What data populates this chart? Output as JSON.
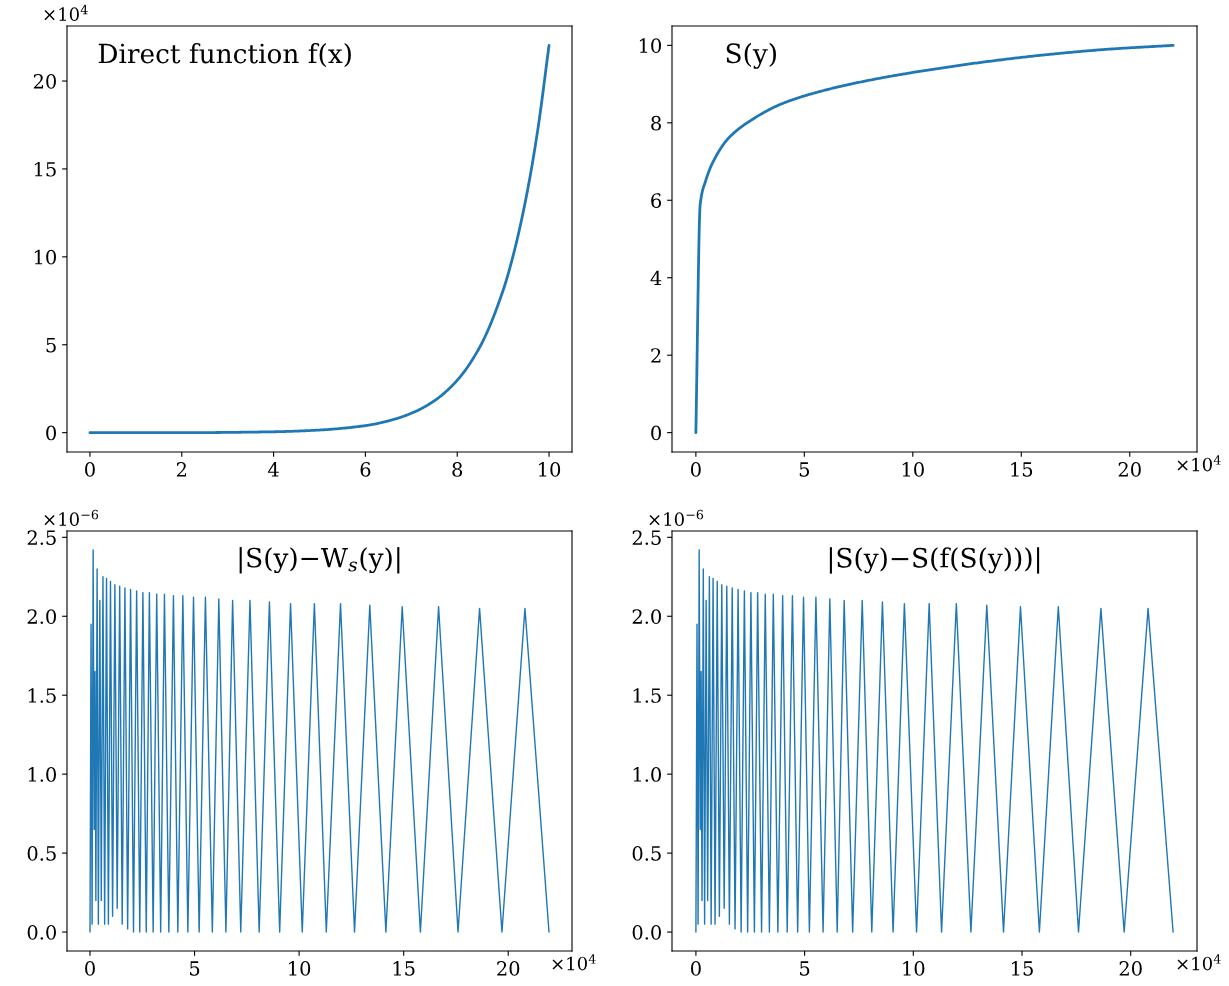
{
  "chart_data": [
    {
      "type": "line",
      "title": "Direct function f(x)",
      "x": [
        0,
        2,
        4,
        5,
        6,
        6.5,
        7,
        7.5,
        8,
        8.5,
        9,
        9.25,
        9.5,
        9.75,
        10
      ],
      "series": [
        {
          "color": "#1f77b4",
          "values": [
            0,
            0,
            0.05,
            0.15,
            0.4,
            0.67,
            1.1,
            1.81,
            2.98,
            4.91,
            8.1,
            10.4,
            13.36,
            17.15,
            22.03
          ]
        }
      ],
      "xlim": [
        -0.5,
        10.5
      ],
      "ylim": [
        -1.1,
        23.13
      ],
      "xticks": [
        0,
        2,
        4,
        6,
        8,
        10
      ],
      "yticks": [
        0,
        5,
        10,
        15,
        20
      ],
      "annotations": [
        "×10$^{4}$"
      ]
    },
    {
      "type": "line",
      "title": "S(y)",
      "x": [
        0,
        0.2,
        0.45,
        0.8,
        1.5,
        2.5,
        4,
        6,
        8,
        10,
        13,
        16,
        19,
        22
      ],
      "series": [
        {
          "color": "#1f77b4",
          "values": [
            0,
            5.9,
            6.5,
            7.0,
            7.6,
            8.05,
            8.5,
            8.85,
            9.1,
            9.3,
            9.55,
            9.75,
            9.9,
            10.0
          ]
        }
      ],
      "xlim": [
        -1.1,
        23.1
      ],
      "ylim": [
        -0.5,
        10.5
      ],
      "xticks": [
        0,
        5,
        10,
        15,
        20
      ],
      "yticks": [
        0,
        2,
        4,
        6,
        8,
        10
      ],
      "annotations": [
        "×10$^{4}$"
      ]
    },
    {
      "type": "line",
      "title": "|S(y)−W$_{s}$(y)|",
      "x": [
        0,
        0.05,
        0.1,
        0.15,
        0.2,
        0.24,
        0.28,
        0.34,
        0.4,
        0.47,
        0.54,
        0.62,
        0.7,
        0.79,
        0.88,
        0.98,
        1.08,
        1.19,
        1.3,
        1.42,
        1.54,
        1.67,
        1.8,
        1.94,
        2.08,
        2.23,
        2.38,
        2.53,
        2.69,
        2.84,
        3.02,
        3.19,
        3.38,
        3.56,
        3.77,
        3.99,
        4.2,
        4.44,
        4.68,
        4.95,
        5.22,
        5.52,
        5.85,
        6.16,
        6.5,
        6.82,
        7.21,
        7.65,
        8.09,
        8.58,
        9.07,
        9.59,
        10.15,
        10.73,
        11.3,
        11.98,
        12.65,
        13.38,
        14.15,
        14.93,
        15.8,
        16.67,
        17.6,
        18.63,
        19.7,
        20.8,
        21.95
      ],
      "series": [
        {
          "color": "#1f77b4",
          "values": [
            0,
            1.95,
            0.05,
            2.42,
            0.65,
            1.65,
            0.2,
            2.3,
            0.05,
            2.1,
            0.2,
            2.25,
            0.05,
            2.24,
            0.05,
            2.22,
            0.1,
            2.2,
            0.15,
            2.19,
            0.05,
            2.18,
            0.02,
            2.17,
            0,
            2.16,
            0,
            2.15,
            0,
            2.15,
            0,
            2.14,
            0,
            2.14,
            0,
            2.13,
            0,
            2.13,
            0,
            2.12,
            0,
            2.12,
            0,
            2.11,
            0,
            2.1,
            0,
            2.1,
            0,
            2.09,
            0,
            2.08,
            0,
            2.08,
            0,
            2.08,
            0,
            2.07,
            0,
            2.06,
            0,
            2.06,
            0,
            2.05,
            0,
            2.05,
            0
          ]
        }
      ],
      "xlim": [
        -1.1,
        23.05
      ],
      "ylim": [
        -0.12,
        2.54
      ],
      "xticks": [
        0,
        5,
        10,
        15,
        20
      ],
      "yticks": [
        {
          "value": 0,
          "label": "0.0"
        },
        {
          "value": 0.5,
          "label": "0.5"
        },
        {
          "value": 1,
          "label": "1.0"
        },
        {
          "value": 1.5,
          "label": "1.5"
        },
        {
          "value": 2,
          "label": "2.0"
        },
        {
          "value": 2.5,
          "label": "2.5"
        }
      ],
      "annotations": [
        "×10$^{−6}$",
        "×10$^{4}$"
      ]
    },
    {
      "type": "line",
      "title": "|S(y)−S(f(S(y)))|",
      "x": [
        0,
        0.05,
        0.1,
        0.15,
        0.2,
        0.24,
        0.28,
        0.34,
        0.4,
        0.47,
        0.54,
        0.62,
        0.7,
        0.79,
        0.88,
        0.98,
        1.08,
        1.19,
        1.3,
        1.42,
        1.54,
        1.67,
        1.8,
        1.94,
        2.08,
        2.23,
        2.38,
        2.53,
        2.69,
        2.84,
        3.02,
        3.19,
        3.38,
        3.56,
        3.77,
        3.99,
        4.2,
        4.44,
        4.68,
        4.95,
        5.22,
        5.52,
        5.85,
        6.16,
        6.5,
        6.82,
        7.21,
        7.65,
        8.09,
        8.58,
        9.07,
        9.59,
        10.15,
        10.73,
        11.3,
        11.98,
        12.65,
        13.38,
        14.15,
        14.93,
        15.8,
        16.67,
        17.6,
        18.63,
        19.7,
        20.8,
        21.95
      ],
      "series": [
        {
          "color": "#1f77b4",
          "values": [
            0,
            1.95,
            0.05,
            2.42,
            0.65,
            1.65,
            0.2,
            2.3,
            0.05,
            2.1,
            0.2,
            2.25,
            0.05,
            2.24,
            0.05,
            2.22,
            0.1,
            2.2,
            0.15,
            2.19,
            0.05,
            2.18,
            0.02,
            2.17,
            0,
            2.16,
            0,
            2.15,
            0,
            2.15,
            0,
            2.14,
            0,
            2.14,
            0,
            2.13,
            0,
            2.13,
            0,
            2.12,
            0,
            2.12,
            0,
            2.11,
            0,
            2.1,
            0,
            2.1,
            0,
            2.09,
            0,
            2.08,
            0,
            2.08,
            0,
            2.08,
            0,
            2.07,
            0,
            2.06,
            0,
            2.06,
            0,
            2.05,
            0,
            2.05,
            0
          ]
        }
      ],
      "xlim": [
        -1.1,
        23.05
      ],
      "ylim": [
        -0.12,
        2.54
      ],
      "xticks": [
        0,
        5,
        10,
        15,
        20
      ],
      "yticks": [
        {
          "value": 0,
          "label": "0.0"
        },
        {
          "value": 0.5,
          "label": "0.5"
        },
        {
          "value": 1,
          "label": "1.0"
        },
        {
          "value": 1.5,
          "label": "1.5"
        },
        {
          "value": 2,
          "label": "2.0"
        },
        {
          "value": 2.5,
          "label": "2.5"
        }
      ],
      "annotations": [
        "×10$^{−6}$",
        "×10$^{4}$"
      ]
    }
  ]
}
